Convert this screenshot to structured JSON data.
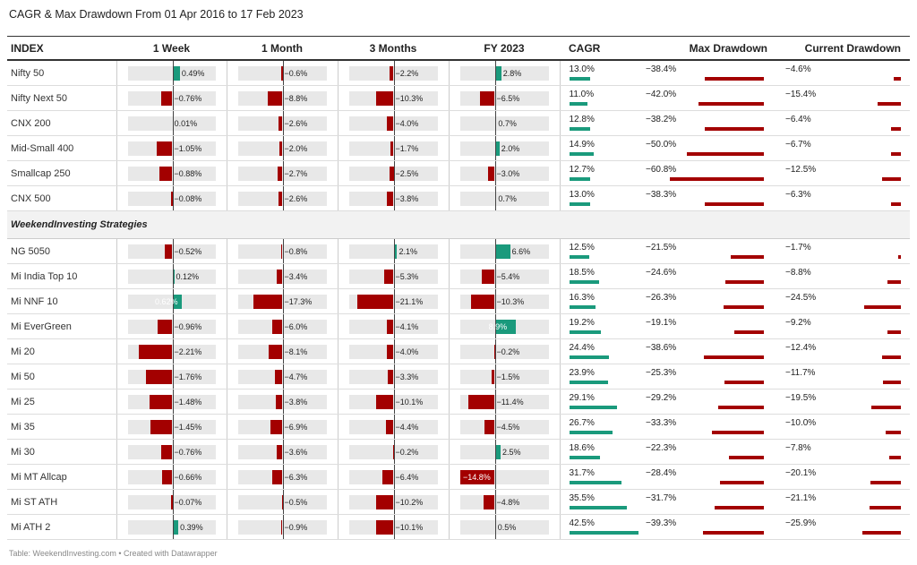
{
  "title": "CAGR & Max Drawdown From 01 Apr 2016 to 17 Feb 2023",
  "footer": "Table: WeekendInvesting.com • Created with Datawrapper",
  "colors": {
    "positive": "#1a9a7c",
    "negative": "#a30000",
    "track": "#e8e8e8"
  },
  "chart_data": {
    "type": "table",
    "columns": [
      "INDEX",
      "1 Week",
      "1 Month",
      "3 Months",
      "FY 2023",
      "CAGR",
      "Max Drawdown",
      "Current Drawdown"
    ],
    "section_label": "WeekendInvesting Strategies",
    "rows": [
      {
        "name": "Nifty 50",
        "w": 0.49,
        "m": -0.6,
        "q": -2.2,
        "fy": 2.8,
        "cagr": 13.0,
        "mdd": -38.4,
        "cdd": -4.6,
        "wl": "0.49%",
        "ml": "−0.6%",
        "ql": "−2.2%",
        "fyl": "2.8%",
        "cagrl": "13.0%",
        "mddl": "−38.4%",
        "cddl": "−4.6%"
      },
      {
        "name": "Nifty Next 50",
        "w": -0.76,
        "m": -8.8,
        "q": -10.3,
        "fy": -6.5,
        "cagr": 11.0,
        "mdd": -42.0,
        "cdd": -15.4,
        "wl": "−0.76%",
        "ml": "−8.8%",
        "ql": "−10.3%",
        "fyl": "−6.5%",
        "cagrl": "11.0%",
        "mddl": "−42.0%",
        "cddl": "−15.4%"
      },
      {
        "name": "CNX 200",
        "w": 0.01,
        "m": -2.6,
        "q": -4.0,
        "fy": 0.7,
        "cagr": 12.8,
        "mdd": -38.2,
        "cdd": -6.4,
        "wl": "0.01%",
        "ml": "−2.6%",
        "ql": "−4.0%",
        "fyl": "0.7%",
        "cagrl": "12.8%",
        "mddl": "−38.2%",
        "cddl": "−6.4%"
      },
      {
        "name": "Mid-Small 400",
        "w": -1.05,
        "m": -2.0,
        "q": -1.7,
        "fy": 2.0,
        "cagr": 14.9,
        "mdd": -50.0,
        "cdd": -6.7,
        "wl": "−1.05%",
        "ml": "−2.0%",
        "ql": "−1.7%",
        "fyl": "2.0%",
        "cagrl": "14.9%",
        "mddl": "−50.0%",
        "cddl": "−6.7%"
      },
      {
        "name": "Smallcap 250",
        "w": -0.88,
        "m": -2.7,
        "q": -2.5,
        "fy": -3.0,
        "cagr": 12.7,
        "mdd": -60.8,
        "cdd": -12.5,
        "wl": "−0.88%",
        "ml": "−2.7%",
        "ql": "−2.5%",
        "fyl": "−3.0%",
        "cagrl": "12.7%",
        "mddl": "−60.8%",
        "cddl": "−12.5%"
      },
      {
        "name": "CNX 500",
        "w": -0.08,
        "m": -2.6,
        "q": -3.8,
        "fy": 0.7,
        "cagr": 13.0,
        "mdd": -38.3,
        "cdd": -6.3,
        "wl": "−0.08%",
        "ml": "−2.6%",
        "ql": "−3.8%",
        "fyl": "0.7%",
        "cagrl": "13.0%",
        "mddl": "−38.3%",
        "cddl": "−6.3%"
      },
      {
        "section": true
      },
      {
        "name": "NG 5050",
        "w": -0.52,
        "m": -0.8,
        "q": 2.1,
        "fy": 6.6,
        "cagr": 12.5,
        "mdd": -21.5,
        "cdd": -1.7,
        "wl": "−0.52%",
        "ml": "−0.8%",
        "ql": "2.1%",
        "fyl": "6.6%",
        "cagrl": "12.5%",
        "mddl": "−21.5%",
        "cddl": "−1.7%"
      },
      {
        "name": "Mi India Top 10",
        "w": 0.12,
        "m": -3.4,
        "q": -5.3,
        "fy": -5.4,
        "cagr": 18.5,
        "mdd": -24.6,
        "cdd": -8.8,
        "wl": "0.12%",
        "ml": "−3.4%",
        "ql": "−5.3%",
        "fyl": "−5.4%",
        "cagrl": "18.5%",
        "mddl": "−24.6%",
        "cddl": "−8.8%"
      },
      {
        "name": "Mi NNF 10",
        "w": 0.62,
        "m": -17.3,
        "q": -21.1,
        "fy": -10.3,
        "cagr": 16.3,
        "mdd": -26.3,
        "cdd": -24.5,
        "wl": "0.62%",
        "ml": "−17.3%",
        "ql": "−21.1%",
        "fyl": "−10.3%",
        "cagrl": "16.3%",
        "mddl": "−26.3%",
        "cddl": "−24.5%"
      },
      {
        "name": "Mi EverGreen",
        "w": -0.96,
        "m": -6.0,
        "q": -4.1,
        "fy": 8.9,
        "cagr": 19.2,
        "mdd": -19.1,
        "cdd": -9.2,
        "wl": "−0.96%",
        "ml": "−6.0%",
        "ql": "−4.1%",
        "fyl": "8.9%",
        "cagrl": "19.2%",
        "mddl": "−19.1%",
        "cddl": "−9.2%"
      },
      {
        "name": "Mi 20",
        "w": -2.21,
        "m": -8.1,
        "q": -4.0,
        "fy": -0.2,
        "cagr": 24.4,
        "mdd": -38.6,
        "cdd": -12.4,
        "wl": "−2.21%",
        "ml": "−8.1%",
        "ql": "−4.0%",
        "fyl": "−0.2%",
        "cagrl": "24.4%",
        "mddl": "−38.6%",
        "cddl": "−12.4%"
      },
      {
        "name": "Mi 50",
        "w": -1.76,
        "m": -4.7,
        "q": -3.3,
        "fy": -1.5,
        "cagr": 23.9,
        "mdd": -25.3,
        "cdd": -11.7,
        "wl": "−1.76%",
        "ml": "−4.7%",
        "ql": "−3.3%",
        "fyl": "−1.5%",
        "cagrl": "23.9%",
        "mddl": "−25.3%",
        "cddl": "−11.7%"
      },
      {
        "name": "Mi 25",
        "w": -1.48,
        "m": -3.8,
        "q": -10.1,
        "fy": -11.4,
        "cagr": 29.1,
        "mdd": -29.2,
        "cdd": -19.5,
        "wl": "−1.48%",
        "ml": "−3.8%",
        "ql": "−10.1%",
        "fyl": "−11.4%",
        "cagrl": "29.1%",
        "mddl": "−29.2%",
        "cddl": "−19.5%"
      },
      {
        "name": "Mi 35",
        "w": -1.45,
        "m": -6.9,
        "q": -4.4,
        "fy": -4.5,
        "cagr": 26.7,
        "mdd": -33.3,
        "cdd": -10.0,
        "wl": "−1.45%",
        "ml": "−6.9%",
        "ql": "−4.4%",
        "fyl": "−4.5%",
        "cagrl": "26.7%",
        "mddl": "−33.3%",
        "cddl": "−10.0%"
      },
      {
        "name": "Mi 30",
        "w": -0.76,
        "m": -3.6,
        "q": -0.2,
        "fy": 2.5,
        "cagr": 18.6,
        "mdd": -22.3,
        "cdd": -7.8,
        "wl": "−0.76%",
        "ml": "−3.6%",
        "ql": "−0.2%",
        "fyl": "2.5%",
        "cagrl": "18.6%",
        "mddl": "−22.3%",
        "cddl": "−7.8%"
      },
      {
        "name": "Mi MT Allcap",
        "w": -0.66,
        "m": -6.3,
        "q": -6.4,
        "fy": -14.8,
        "cagr": 31.7,
        "mdd": -28.4,
        "cdd": -20.1,
        "wl": "−0.66%",
        "ml": "−6.3%",
        "ql": "−6.4%",
        "fyl": "−14.8%",
        "cagrl": "31.7%",
        "mddl": "−28.4%",
        "cddl": "−20.1%"
      },
      {
        "name": "Mi ST ATH",
        "w": -0.07,
        "m": -0.5,
        "q": -10.2,
        "fy": -4.8,
        "cagr": 35.5,
        "mdd": -31.7,
        "cdd": -21.1,
        "wl": "−0.07%",
        "ml": "−0.5%",
        "ql": "−10.2%",
        "fyl": "−4.8%",
        "cagrl": "35.5%",
        "mddl": "−31.7%",
        "cddl": "−21.1%"
      },
      {
        "name": "Mi ATH 2",
        "w": 0.39,
        "m": -0.9,
        "q": -10.1,
        "fy": 0.5,
        "cagr": 42.5,
        "mdd": -39.3,
        "cdd": -25.9,
        "wl": "0.39%",
        "ml": "−0.9%",
        "ql": "−10.1%",
        "fyl": "0.5%",
        "cagrl": "42.5%",
        "mddl": "−39.3%",
        "cddl": "−25.9%"
      }
    ]
  }
}
